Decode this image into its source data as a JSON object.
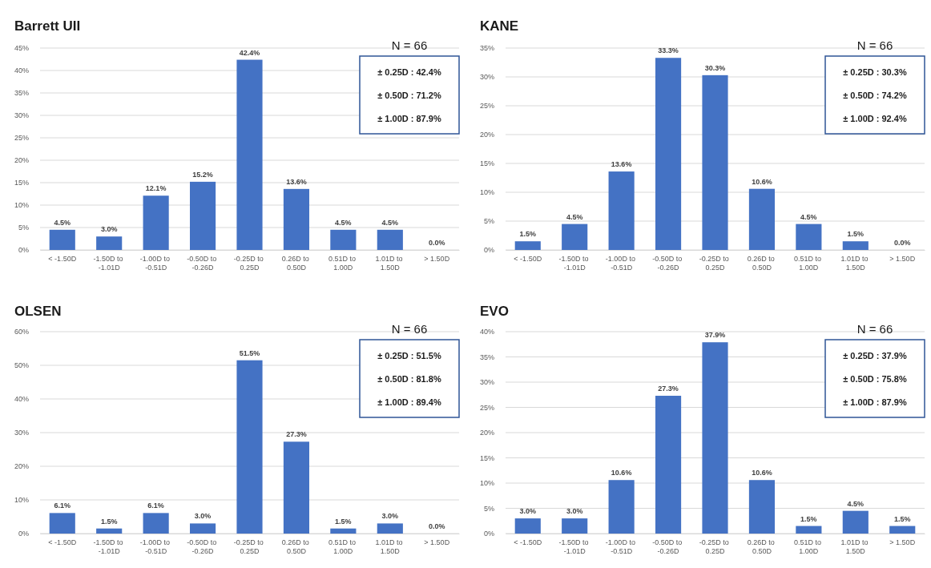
{
  "chart_data": [
    {
      "type": "bar",
      "title": "Barrett UII",
      "categories": [
        "< -1.50D",
        "-1.50D to -1.01D",
        "-1.00D to -0.51D",
        "-0.50D to -0.26D",
        "-0.25D to 0.25D",
        "0.26D to 0.50D",
        "0.51D to 1.00D",
        "1.01D to 1.50D",
        "> 1.50D"
      ],
      "values": [
        4.5,
        3.0,
        12.1,
        15.2,
        42.4,
        13.6,
        4.5,
        4.5,
        0.0
      ],
      "value_labels": [
        "4.5%",
        "3.0%",
        "12.1%",
        "15.2%",
        "42.4%",
        "13.6%",
        "4.5%",
        "4.5%",
        "0.0%"
      ],
      "color": "#4472c4",
      "ylim": [
        0,
        45
      ],
      "yticks": [
        {
          "value": 0,
          "label": "0%"
        },
        {
          "value": 5,
          "label": "5%"
        },
        {
          "value": 10,
          "label": "10%"
        },
        {
          "value": 15,
          "label": "15%"
        },
        {
          "value": 20,
          "label": "20%"
        },
        {
          "value": 25,
          "label": "25%"
        },
        {
          "value": 30,
          "label": "30%"
        },
        {
          "value": 35,
          "label": "35%"
        },
        {
          "value": 40,
          "label": "40%"
        },
        {
          "value": 45,
          "label": "45%"
        }
      ],
      "grid": "y",
      "annotations": [
        "N = 66",
        "± 0.25D : 42.4%",
        "± 0.50D : 71.2%",
        "± 1.00D : 87.9%"
      ]
    },
    {
      "type": "bar",
      "title": "KANE",
      "categories": [
        "< -1.50D",
        "-1.50D to -1.01D",
        "-1.00D to -0.51D",
        "-0.50D to -0.26D",
        "-0.25D to 0.25D",
        "0.26D to 0.50D",
        "0.51D to 1.00D",
        "1.01D to 1.50D",
        "> 1.50D"
      ],
      "values": [
        1.5,
        4.5,
        13.6,
        33.3,
        30.3,
        10.6,
        4.5,
        1.5,
        0.0
      ],
      "value_labels": [
        "1.5%",
        "4.5%",
        "13.6%",
        "33.3%",
        "30.3%",
        "10.6%",
        "4.5%",
        "1.5%",
        "0.0%"
      ],
      "color": "#4472c4",
      "ylim": [
        0,
        35
      ],
      "yticks": [
        {
          "value": 0,
          "label": "0%"
        },
        {
          "value": 5,
          "label": "5%"
        },
        {
          "value": 10,
          "label": "10%"
        },
        {
          "value": 15,
          "label": "15%"
        },
        {
          "value": 20,
          "label": "20%"
        },
        {
          "value": 25,
          "label": "25%"
        },
        {
          "value": 30,
          "label": "30%"
        },
        {
          "value": 35,
          "label": "35%"
        }
      ],
      "grid": "y",
      "annotations": [
        "N = 66",
        "± 0.25D : 30.3%",
        "± 0.50D : 74.2%",
        "± 1.00D : 92.4%"
      ]
    },
    {
      "type": "bar",
      "title": "OLSEN",
      "categories": [
        "< -1.50D",
        "-1.50D to -1.01D",
        "-1.00D to -0.51D",
        "-0.50D to -0.26D",
        "-0.25D to 0.25D",
        "0.26D to 0.50D",
        "0.51D to 1.00D",
        "1.01D to 1.50D",
        "> 1.50D"
      ],
      "values": [
        6.1,
        1.5,
        6.1,
        3.0,
        51.5,
        27.3,
        1.5,
        3.0,
        0.0
      ],
      "value_labels": [
        "6.1%",
        "1.5%",
        "6.1%",
        "3.0%",
        "51.5%",
        "27.3%",
        "1.5%",
        "3.0%",
        "0.0%"
      ],
      "color": "#4472c4",
      "ylim": [
        0,
        60
      ],
      "yticks": [
        {
          "value": 0,
          "label": "0%"
        },
        {
          "value": 10,
          "label": "10%"
        },
        {
          "value": 20,
          "label": "20%"
        },
        {
          "value": 30,
          "label": "30%"
        },
        {
          "value": 40,
          "label": "40%"
        },
        {
          "value": 50,
          "label": "50%"
        },
        {
          "value": 60,
          "label": "60%"
        }
      ],
      "grid": "y",
      "annotations": [
        "N = 66",
        "± 0.25D : 51.5%",
        "± 0.50D : 81.8%",
        "± 1.00D : 89.4%"
      ]
    },
    {
      "type": "bar",
      "title": "EVO",
      "categories": [
        "< -1.50D",
        "-1.50D to -1.01D",
        "-1.00D to -0.51D",
        "-0.50D to -0.26D",
        "-0.25D to 0.25D",
        "0.26D to 0.50D",
        "0.51D to 1.00D",
        "1.01D to 1.50D",
        "> 1.50D"
      ],
      "values": [
        3.0,
        3.0,
        10.6,
        27.3,
        37.9,
        10.6,
        1.5,
        4.5,
        1.5
      ],
      "value_labels": [
        "3.0%",
        "3.0%",
        "10.6%",
        "27.3%",
        "37.9%",
        "10.6%",
        "1.5%",
        "4.5%",
        "1.5%"
      ],
      "color": "#4472c4",
      "ylim": [
        0,
        40
      ],
      "yticks": [
        {
          "value": 0,
          "label": "0%"
        },
        {
          "value": 5,
          "label": "5%"
        },
        {
          "value": 10,
          "label": "10%"
        },
        {
          "value": 15,
          "label": "15%"
        },
        {
          "value": 20,
          "label": "20%"
        },
        {
          "value": 25,
          "label": "25%"
        },
        {
          "value": 30,
          "label": "30%"
        },
        {
          "value": 35,
          "label": "35%"
        },
        {
          "value": 40,
          "label": "40%"
        }
      ],
      "grid": "y",
      "annotations": [
        "N = 66",
        "± 0.25D : 37.9%",
        "± 0.50D : 75.8%",
        "± 1.00D : 87.9%"
      ]
    }
  ]
}
